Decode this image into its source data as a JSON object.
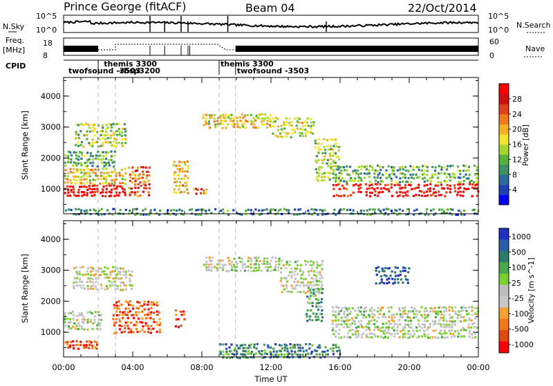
{
  "header": {
    "station": "Prince George (fitACF)",
    "beam": "Beam 04",
    "date": "22/Oct/2014"
  },
  "panel_labels": {
    "nsky": "N.Sky",
    "nsearch": "N.Search",
    "freq_line1": "Freq.",
    "freq_line2": "[MHz]",
    "nave": "Nave",
    "cpid": "CPID"
  },
  "noise_axis": {
    "top": "10^5",
    "bottom": "10^0",
    "right_top": "10^5",
    "right_bottom": "10^0"
  },
  "freq_axis": {
    "left_top": "18",
    "left_bottom": "8",
    "right_top": "60",
    "right_bottom": "0"
  },
  "cpid_labels": [
    {
      "text": "twofsound -3503",
      "t": 0.2,
      "row": 2
    },
    {
      "text": "themis 3300",
      "t": 2.25,
      "row": 1
    },
    {
      "text": "-rbsp3200",
      "t": 3.0,
      "row": 2
    },
    {
      "text": "themis 3300",
      "t": 9.0,
      "row": 1
    },
    {
      "text": "twofsound -3503",
      "t": 9.95,
      "row": 2
    }
  ],
  "cpid_change_times": [
    2.0,
    9.0,
    9.95
  ],
  "colors": {
    "power": [
      "#0000ff",
      "#1f3fb5",
      "#2e6a9e",
      "#3e8f63",
      "#58b23a",
      "#a8d82e",
      "#f2e52a",
      "#f5b021",
      "#f07a1e",
      "#e0401a",
      "#d01010",
      "#ff0000"
    ],
    "velocity": [
      "#2030c0",
      "#2a5ea8",
      "#2f7a6a",
      "#4aa84a",
      "#7ad02e",
      "#bdbdbd",
      "#c8c8c8",
      "#f7a030",
      "#f07818",
      "#e04a12",
      "#ff0000"
    ]
  },
  "chart_data": [
    {
      "type": "heatmap",
      "name": "power",
      "xlabel": "",
      "ylabel": "Slant Range [km]",
      "xlim": [
        0,
        24
      ],
      "ylim": [
        200,
        4600
      ],
      "yticks": [
        "1000",
        "2000",
        "3000",
        "4000"
      ],
      "colorbar": {
        "label": "Power [dB]",
        "range": [
          0,
          32
        ],
        "ticks": [
          "4",
          "8",
          "12",
          "16",
          "20",
          "24",
          "28"
        ]
      },
      "regions": [
        {
          "t": [
            0.0,
            3.6
          ],
          "r": [
            800,
            1200
          ],
          "level": 0.95
        },
        {
          "t": [
            0.0,
            3.6
          ],
          "r": [
            1200,
            1750
          ],
          "level": 0.55
        },
        {
          "t": [
            0.0,
            3.0
          ],
          "r": [
            1750,
            2300
          ],
          "level": 0.35
        },
        {
          "t": [
            0.6,
            3.6
          ],
          "r": [
            2400,
            3200
          ],
          "level": 0.45
        },
        {
          "t": [
            3.7,
            5.0
          ],
          "r": [
            800,
            1800
          ],
          "level": 0.75
        },
        {
          "t": [
            6.3,
            7.2
          ],
          "r": [
            900,
            2000
          ],
          "level": 0.6
        },
        {
          "t": [
            7.4,
            8.3
          ],
          "r": [
            850,
            1100
          ],
          "level": 0.7
        },
        {
          "t": [
            8.0,
            12.0
          ],
          "r": [
            3000,
            3500
          ],
          "level": 0.55
        },
        {
          "t": [
            12.0,
            14.5
          ],
          "r": [
            2700,
            3400
          ],
          "level": 0.5
        },
        {
          "t": [
            14.5,
            16.0
          ],
          "r": [
            1300,
            2700
          ],
          "level": 0.45
        },
        {
          "t": [
            15.5,
            24.0
          ],
          "r": [
            800,
            1250
          ],
          "level": 0.9
        },
        {
          "t": [
            15.5,
            24.0
          ],
          "r": [
            1250,
            1850
          ],
          "level": 0.35
        },
        {
          "t": [
            0.0,
            24.0
          ],
          "r": [
            200,
            450
          ],
          "level": 0.25
        }
      ]
    },
    {
      "type": "heatmap",
      "name": "velocity",
      "xlabel": "Time UT",
      "ylabel": "Slant Range [km]",
      "xlim": [
        0,
        24
      ],
      "ylim": [
        200,
        4600
      ],
      "xticks": [
        "00:00",
        "04:00",
        "08:00",
        "12:00",
        "16:00",
        "20:00",
        "00:00"
      ],
      "yticks": [
        "1000",
        "2000",
        "3000",
        "4000"
      ],
      "colorbar": {
        "label": "Velocity [m s^-1]",
        "ticks": [
          "1000",
          "500",
          "100",
          "25",
          "-25",
          "-100",
          "-500",
          "-1000"
        ]
      },
      "regions": [
        {
          "t": [
            0.0,
            2.2
          ],
          "r": [
            1100,
            1750
          ],
          "level": 0.5
        },
        {
          "t": [
            0.0,
            2.0
          ],
          "r": [
            500,
            800
          ],
          "level": 0.85
        },
        {
          "t": [
            2.8,
            5.6
          ],
          "r": [
            1000,
            2100
          ],
          "level": 0.82
        },
        {
          "t": [
            0.5,
            4.0
          ],
          "r": [
            2400,
            3200
          ],
          "level": 0.55
        },
        {
          "t": [
            6.4,
            7.0
          ],
          "r": [
            1200,
            1800
          ],
          "level": 0.8
        },
        {
          "t": [
            8.0,
            12.5
          ],
          "r": [
            3000,
            3500
          ],
          "level": 0.5
        },
        {
          "t": [
            12.5,
            15.0
          ],
          "r": [
            2300,
            3400
          ],
          "level": 0.5
        },
        {
          "t": [
            14.0,
            15.0
          ],
          "r": [
            1400,
            2500
          ],
          "level": 0.3
        },
        {
          "t": [
            15.5,
            24.0
          ],
          "r": [
            850,
            1900
          ],
          "level": 0.5
        },
        {
          "t": [
            18.0,
            20.0
          ],
          "r": [
            2600,
            3200
          ],
          "level": 0.1
        },
        {
          "t": [
            9.0,
            16.0
          ],
          "r": [
            200,
            700
          ],
          "level": 0.25
        }
      ]
    }
  ]
}
